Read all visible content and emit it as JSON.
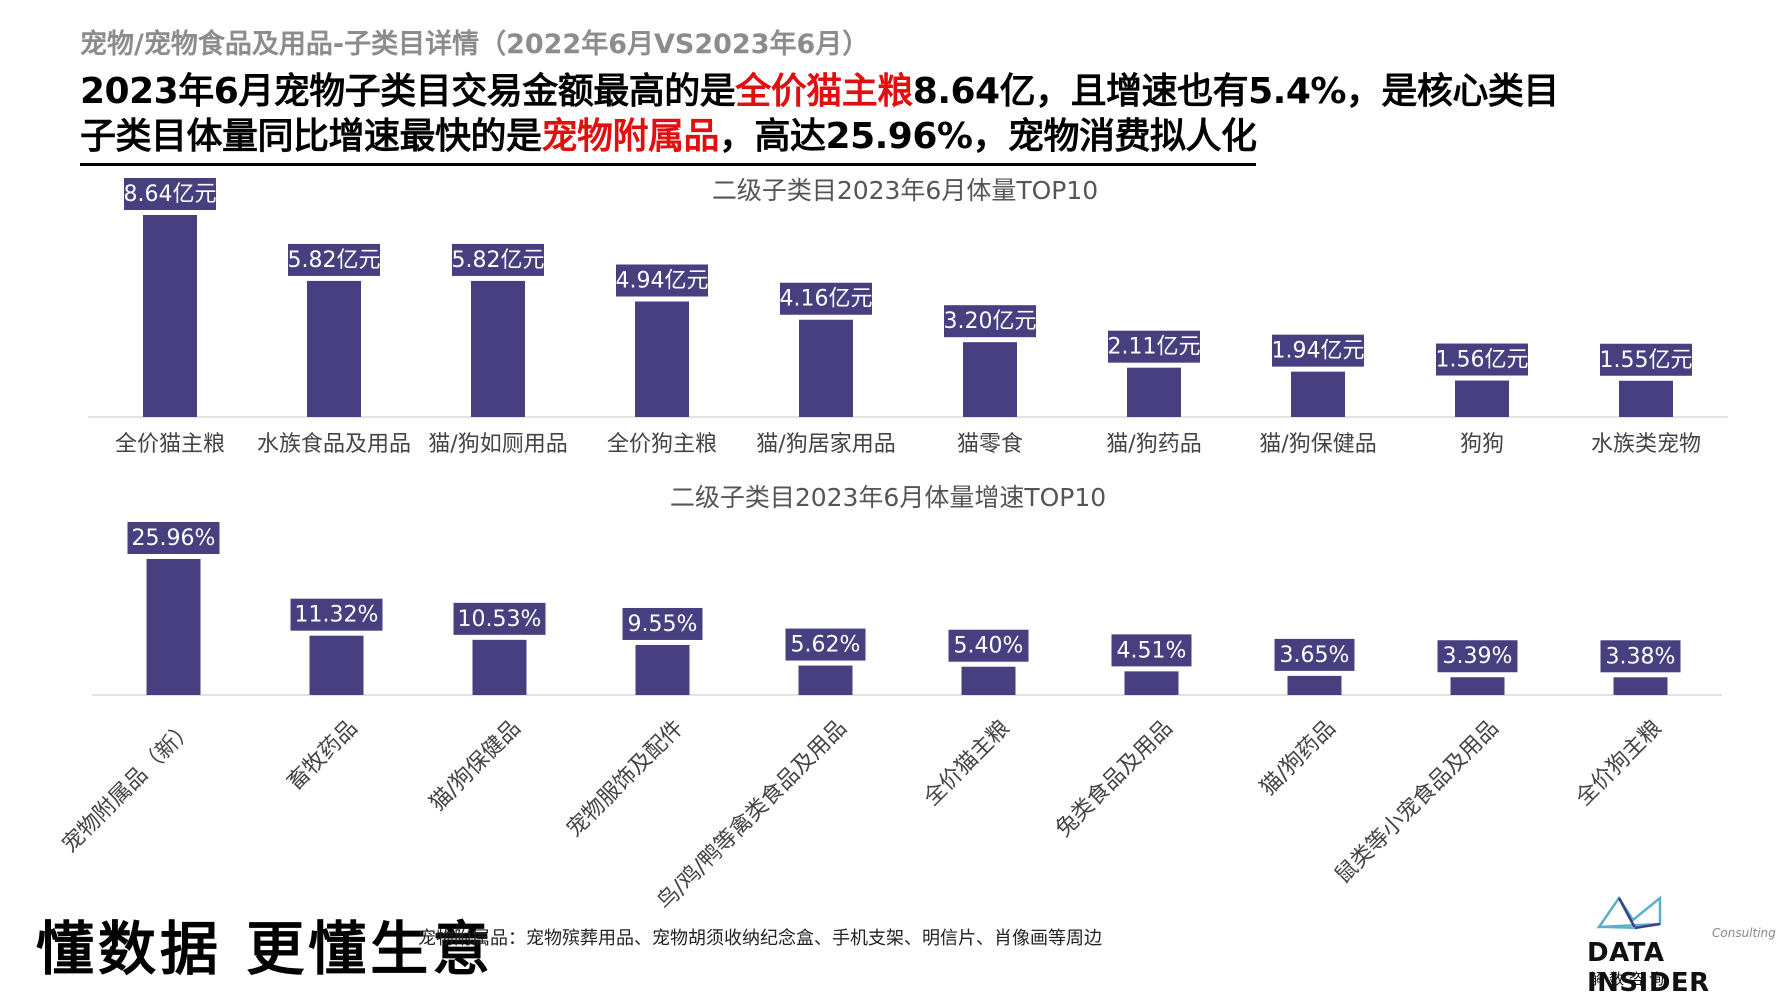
{
  "header": {
    "subtitle": "宠物/宠物食品及用品-子类目详情（2022年6月VS2023年6月）",
    "line1_pre": "2023年6月宠物子类目交易金额最高的是",
    "line1_red": "全价猫主粮",
    "line1_post": "8.64亿，且增速也有5.4%，是核心类目",
    "line2_pre": "子类目体量同比增速最快的是",
    "line2_red": "宠物附属品",
    "line2_post": "，高达25.96%，宠物消费拟人化"
  },
  "colors": {
    "bar": "#473f7f",
    "label_bg": "#473f7f",
    "label_text": "#ffffff",
    "axis": "#d9d9d9",
    "accent_red": "#e01010"
  },
  "chart_data": [
    {
      "type": "bar",
      "title": "二级子类目2023年6月体量TOP10",
      "categories": [
        "全价猫主粮",
        "水族食品及用品",
        "猫/狗如厕用品",
        "全价狗主粮",
        "猫/狗居家用品",
        "猫零食",
        "猫/狗药品",
        "猫/狗保健品",
        "狗狗",
        "水族类宠物"
      ],
      "values": [
        8.64,
        5.82,
        5.82,
        4.94,
        4.16,
        3.2,
        2.11,
        1.94,
        1.56,
        1.55
      ],
      "labels": [
        "8.64亿元",
        "5.82亿元",
        "5.82亿元",
        "4.94亿元",
        "4.16亿元",
        "3.20亿元",
        "2.11亿元",
        "1.94亿元",
        "1.56亿元",
        "1.55亿元"
      ],
      "unit": "亿元",
      "grid": false
    },
    {
      "type": "bar",
      "title": "二级子类目2023年6月体量增速TOP10",
      "categories": [
        "宠物附属品（新）",
        "畜牧药品",
        "猫/狗保健品",
        "宠物服饰及配件",
        "鸟/鸡/鸭等禽类食品及用品",
        "全价猫主粮",
        "兔类食品及用品",
        "猫/狗药品",
        "鼠类等小宠食品及用品",
        "全价狗主粮"
      ],
      "values": [
        25.96,
        11.32,
        10.53,
        9.55,
        5.62,
        5.4,
        4.51,
        3.65,
        3.39,
        3.38
      ],
      "labels": [
        "25.96%",
        "11.32%",
        "10.53%",
        "9.55%",
        "5.62%",
        "5.40%",
        "4.51%",
        "3.65%",
        "3.39%",
        "3.38%"
      ],
      "unit": "%",
      "grid": false
    }
  ],
  "footer": {
    "slogan": "懂数据 更懂生意",
    "footnote": "宠物附属品：宠物殡葬用品、宠物胡须收纳纪念盒、手机支架、明信片、肖像画等周边",
    "logo_consulting": "Consulting",
    "logo_name": "DATA INSIDER",
    "logo_cn": "解数咨询",
    "logo_icon": "data-insider-logo-icon"
  }
}
